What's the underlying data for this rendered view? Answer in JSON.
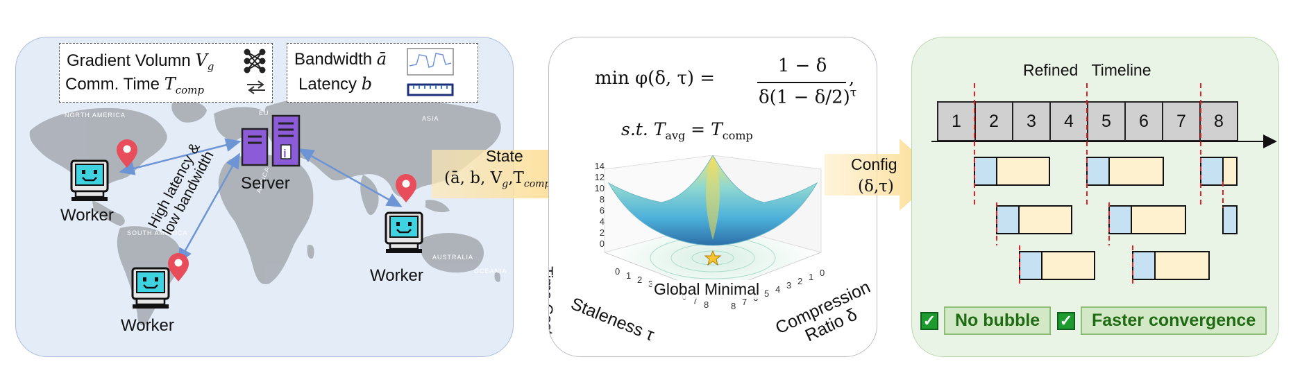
{
  "left": {
    "info_box1": {
      "line1": "Gradient Volumn",
      "line1_var": "V",
      "line1_sub": "g",
      "line2": "Comm. Time",
      "line2_var": "T",
      "line2_sub": "comp"
    },
    "info_box2": {
      "line1": "Bandwidth",
      "line1_var": "ā",
      "line2": "Latency",
      "line2_var": "b"
    },
    "server_label": "Server",
    "worker_label": "Worker",
    "link_label_line1": "High latency &",
    "link_label_line2": "low bandwidth",
    "map_labels": [
      "NORTH AMERICA",
      "SOUTH AMERICA",
      "AFRICA",
      "ASIA",
      "AUSTRALIA",
      "OCEANIA",
      "EU"
    ]
  },
  "arrow1": {
    "line1": "State",
    "line2": "(ā, b, V",
    "line2_sub": "g",
    "line2_tail": ",T",
    "line2_sub2": "comp",
    "line2_end": ")"
  },
  "middle": {
    "formula_prefix": "min φ(δ, τ) =",
    "formula_num": "1 − δ",
    "formula_den": "δ(1 − δ/2)",
    "formula_den_exp": "τ",
    "formula_end": ",",
    "constraint": "s.t. T",
    "constraint_sub": "avg",
    "constraint_mid": " = T",
    "constraint_sub2": "comp",
    "z_axis_label": "Time Cost",
    "z_ticks": [
      "14",
      "12",
      "10",
      "8",
      "6",
      "4",
      "2",
      "0"
    ],
    "x_axis_label": "Staleness τ",
    "x_ticks": [
      "0",
      "1",
      "2",
      "3",
      "4",
      "5",
      "6",
      "7",
      "8"
    ],
    "y_axis_label_line1": "Compression",
    "y_axis_label_line2": "Ratio δ",
    "y_ticks": [
      "8",
      "7",
      "6",
      "5",
      "4",
      "3",
      "2",
      "1",
      "0"
    ],
    "minimum_label": "Global Minimal"
  },
  "arrow2": {
    "line1": "Config",
    "line2": "(δ,τ)"
  },
  "right": {
    "title_word1": "Refined",
    "title_word2": "Timeline",
    "timeline_cells": [
      "1",
      "2",
      "3",
      "4",
      "5",
      "6",
      "7",
      "8"
    ],
    "badge1": "No bubble",
    "badge2": "Faster convergence",
    "colors": {
      "blue_block": "#c6e2f2",
      "yellow_block": "#fdf1cf",
      "dash": "#e02020"
    }
  }
}
